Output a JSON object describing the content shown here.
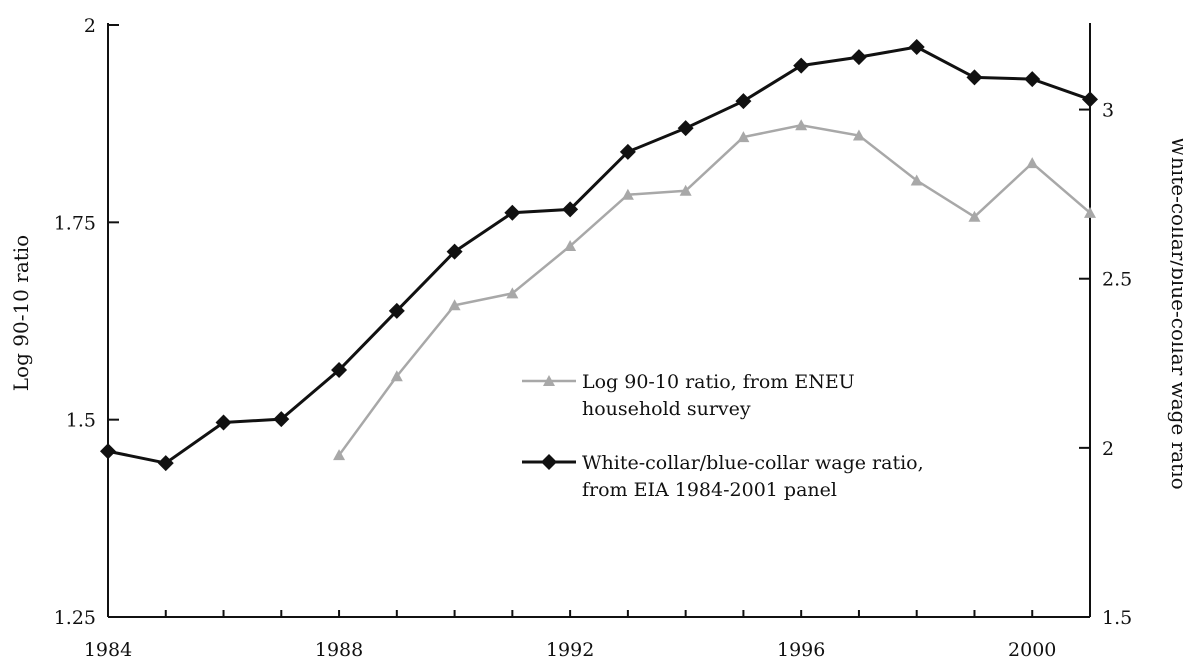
{
  "chart_data": {
    "type": "line",
    "x_ticks": [
      "1984",
      "1988",
      "1992",
      "1996",
      "2000"
    ],
    "y_left": {
      "label": "Log 90-10 ratio",
      "range": [
        1.25,
        2.0
      ],
      "ticks": [
        "1.25",
        "1.5",
        "1.75",
        "2"
      ]
    },
    "y_right": {
      "label": "White-collar/blue-collar wage ratio",
      "range": [
        1.5,
        3.25
      ],
      "ticks": [
        "1.5",
        "2",
        "2.5",
        "3"
      ]
    },
    "xlim": [
      1984,
      2001
    ],
    "series": [
      {
        "name": "Log 90-10 ratio, from ENEU household survey",
        "legend_lines": [
          "Log 90-10 ratio, from ENEU",
          "household survey"
        ],
        "axis": "left",
        "marker": "triangle",
        "color": "#a8a8a8",
        "x": [
          1988,
          1989,
          1990,
          1991,
          1992,
          1993,
          1994,
          1995,
          1996,
          1997,
          1998,
          1999,
          2000,
          2001
        ],
        "y": [
          1.455,
          1.555,
          1.645,
          1.66,
          1.72,
          1.785,
          1.79,
          1.858,
          1.873,
          1.86,
          1.803,
          1.757,
          1.825,
          1.762
        ]
      },
      {
        "name": "White-collar/blue-collar wage ratio, from EIA 1984-2001 panel",
        "legend_lines": [
          "White-collar/blue-collar wage ratio,",
          "from EIA 1984-2001 panel"
        ],
        "axis": "right",
        "marker": "diamond",
        "color": "#111111",
        "x": [
          1984,
          1985,
          1986,
          1987,
          1988,
          1989,
          1990,
          1991,
          1992,
          1993,
          1994,
          1995,
          1996,
          1997,
          1998,
          1999,
          2000,
          2001
        ],
        "y": [
          1.99,
          1.955,
          2.075,
          2.085,
          2.23,
          2.405,
          2.58,
          2.695,
          2.705,
          2.875,
          2.945,
          3.025,
          3.13,
          3.155,
          3.185,
          3.095,
          3.09,
          3.03
        ]
      }
    ]
  }
}
